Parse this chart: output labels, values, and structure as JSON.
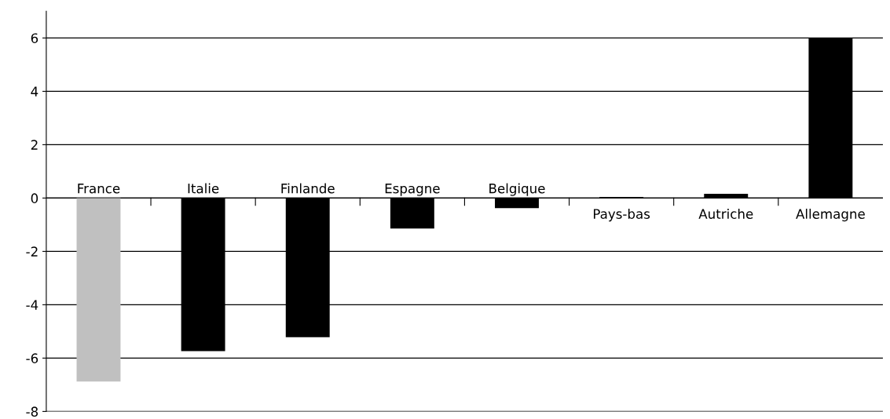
{
  "chart_data": {
    "type": "bar",
    "categories": [
      "France",
      "Italie",
      "Finlande",
      "Espagne",
      "Belgique",
      "Pays-bas",
      "Autriche",
      "Allemagne"
    ],
    "values": [
      -6.88,
      -5.74,
      -5.22,
      -1.14,
      -0.38,
      0.04,
      0.16,
      6.0
    ],
    "colors": [
      "#c0c0c0",
      "#000000",
      "#000000",
      "#000000",
      "#000000",
      "#000000",
      "#000000",
      "#000000"
    ],
    "ylim": [
      -8,
      7
    ],
    "yticks": [
      -8,
      -6,
      -4,
      -2,
      0,
      2,
      4,
      6
    ],
    "grid": "y",
    "legend": false
  }
}
